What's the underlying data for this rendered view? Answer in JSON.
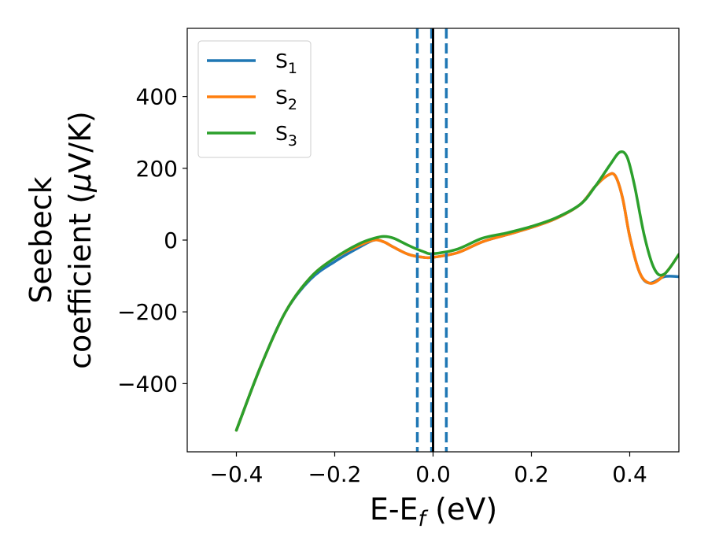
{
  "chart_data": {
    "type": "line",
    "xlabel": "E-E",
    "xlabel_sub": "f",
    "xlabel_unit": " (eV)",
    "ylabel_line1": "Seebeck",
    "ylabel_line2_pre": "coefficient  (",
    "ylabel_mu": "μ",
    "ylabel_line2_post": "V/K)",
    "xlim": [
      -0.5,
      0.5
    ],
    "ylim": [
      -590,
      590
    ],
    "xticks": [
      -0.4,
      -0.2,
      0.0,
      0.2,
      0.4
    ],
    "xtick_labels": [
      "−0.4",
      "−0.2",
      "0.0",
      "0.2",
      "0.4"
    ],
    "yticks": [
      -400,
      -200,
      0,
      200,
      400
    ],
    "ytick_labels": [
      "−400",
      "−200",
      "0",
      "200",
      "400"
    ],
    "grid": false,
    "legend_position": "top-left",
    "vlines": [
      {
        "x": -0.032,
        "style": "dashed",
        "color": "#1f77b4"
      },
      {
        "x": -0.003,
        "style": "dashed",
        "color": "#1f77b4"
      },
      {
        "x": 0.0,
        "style": "solid",
        "color": "#000000"
      },
      {
        "x": 0.027,
        "style": "dashed",
        "color": "#1f77b4"
      }
    ],
    "series": [
      {
        "name": "S",
        "sub": "1",
        "color": "#1f77b4",
        "x": [
          -0.4,
          -0.35,
          -0.3,
          -0.25,
          -0.2,
          -0.15,
          -0.12,
          -0.1,
          -0.08,
          -0.05,
          -0.02,
          0.0,
          0.05,
          0.1,
          0.15,
          0.2,
          0.25,
          0.3,
          0.33,
          0.355,
          0.37,
          0.385,
          0.4,
          0.42,
          0.44,
          0.47,
          0.5
        ],
        "y": [
          -530,
          -350,
          -200,
          -110,
          -60,
          -20,
          0,
          -5,
          -20,
          -40,
          -48,
          -48,
          -35,
          -5,
          15,
          35,
          60,
          100,
          150,
          180,
          180,
          120,
          10,
          -90,
          -120,
          -102,
          -102
        ]
      },
      {
        "name": "S",
        "sub": "2",
        "color": "#ff7f0e",
        "x": [
          -0.4,
          -0.35,
          -0.3,
          -0.25,
          -0.2,
          -0.15,
          -0.12,
          -0.1,
          -0.08,
          -0.05,
          -0.02,
          0.0,
          0.05,
          0.1,
          0.15,
          0.2,
          0.25,
          0.3,
          0.33,
          0.355,
          0.37,
          0.385,
          0.4,
          0.42,
          0.44,
          0.46,
          0.48,
          0.5
        ],
        "y": [
          -530,
          -350,
          -200,
          -105,
          -50,
          -15,
          0,
          -5,
          -20,
          -40,
          -48,
          -48,
          -35,
          -5,
          15,
          35,
          60,
          100,
          150,
          180,
          180,
          120,
          10,
          -90,
          -120,
          -110,
          -80,
          -40
        ]
      },
      {
        "name": "S",
        "sub": "3",
        "color": "#2ca02c",
        "x": [
          -0.4,
          -0.35,
          -0.3,
          -0.25,
          -0.2,
          -0.15,
          -0.12,
          -0.1,
          -0.08,
          -0.05,
          -0.02,
          0.0,
          0.05,
          0.1,
          0.15,
          0.2,
          0.25,
          0.3,
          0.33,
          0.36,
          0.38,
          0.395,
          0.41,
          0.43,
          0.45,
          0.47,
          0.5
        ],
        "y": [
          -530,
          -350,
          -200,
          -105,
          -50,
          -10,
          5,
          10,
          5,
          -15,
          -32,
          -38,
          -25,
          5,
          20,
          38,
          62,
          100,
          150,
          210,
          245,
          230,
          150,
          10,
          -80,
          -95,
          -40
        ]
      }
    ]
  }
}
